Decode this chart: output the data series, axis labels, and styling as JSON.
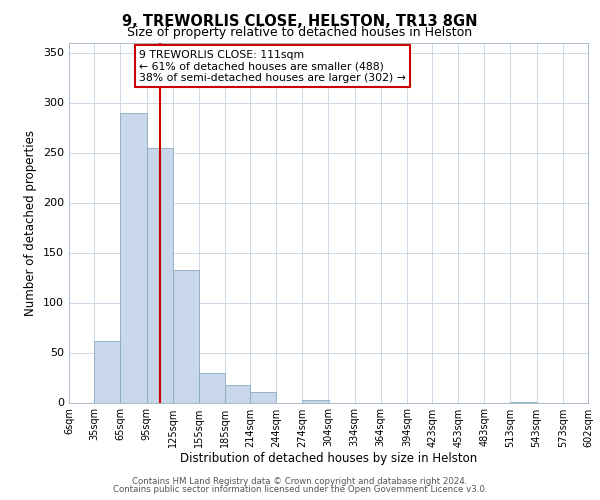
{
  "title": "9, TREWORLIS CLOSE, HELSTON, TR13 8GN",
  "subtitle": "Size of property relative to detached houses in Helston",
  "xlabel": "Distribution of detached houses by size in Helston",
  "ylabel": "Number of detached properties",
  "bar_edges": [
    6,
    35,
    65,
    95,
    125,
    155,
    185,
    214,
    244,
    274,
    304,
    334,
    364,
    394,
    423,
    453,
    483,
    513,
    543,
    573,
    602
  ],
  "bar_heights": [
    0,
    62,
    290,
    255,
    133,
    30,
    18,
    11,
    0,
    3,
    0,
    0,
    0,
    0,
    0,
    0,
    0,
    1,
    0,
    0
  ],
  "bar_color": "#c8d8ea",
  "bar_edgecolor": "#8baabf",
  "vline_x": 111,
  "vline_color": "#cc0000",
  "annotation_line1": "9 TREWORLIS CLOSE: 111sqm",
  "annotation_line2": "← 61% of detached houses are smaller (488)",
  "annotation_line3": "38% of semi-detached houses are larger (302) →",
  "ylim": [
    0,
    360
  ],
  "yticks": [
    0,
    50,
    100,
    150,
    200,
    250,
    300,
    350
  ],
  "xlim": [
    6,
    602
  ],
  "tick_labels": [
    "6sqm",
    "35sqm",
    "65sqm",
    "95sqm",
    "125sqm",
    "155sqm",
    "185sqm",
    "214sqm",
    "244sqm",
    "274sqm",
    "304sqm",
    "334sqm",
    "364sqm",
    "394sqm",
    "423sqm",
    "453sqm",
    "483sqm",
    "513sqm",
    "543sqm",
    "573sqm",
    "602sqm"
  ],
  "footer1": "Contains HM Land Registry data © Crown copyright and database right 2024.",
  "footer2": "Contains public sector information licensed under the Open Government Licence v3.0.",
  "background_color": "#ffffff",
  "grid_color": "#ccd8e4"
}
